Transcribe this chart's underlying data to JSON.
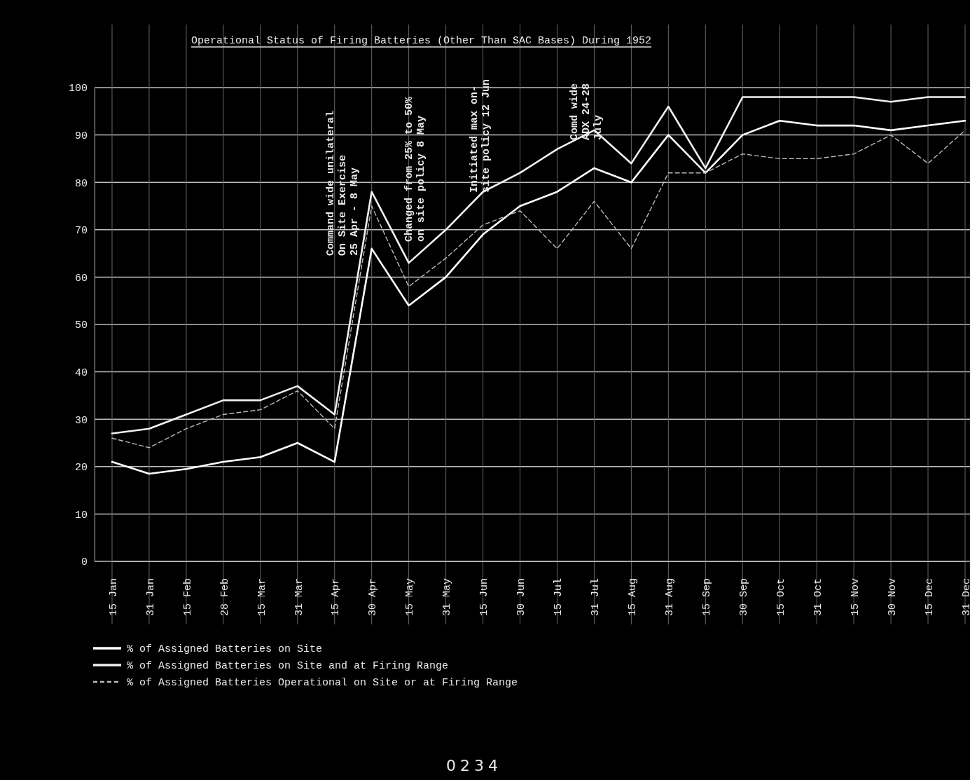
{
  "chart_data": {
    "type": "line",
    "title": "Operational Status of Firing Batteries (Other Than SAC Bases) During 1952",
    "categories": [
      "15 Jan",
      "31 Jan",
      "15 Feb",
      "28 Feb",
      "15 Mar",
      "31 Mar",
      "15 Apr",
      "30 Apr",
      "15 May",
      "31 May",
      "15 Jun",
      "30 Jun",
      "15 Jul",
      "31 Jul",
      "15 Aug",
      "31 Aug",
      "15 Sep",
      "30 Sep",
      "15 Oct",
      "31 Oct",
      "15 Nov",
      "30 Nov",
      "15 Dec",
      "31 Dec"
    ],
    "series": [
      {
        "name": "% of Assigned Batteries on Site",
        "color": "#ffffff",
        "line_style": "solid",
        "values": [
          21,
          18.5,
          19.5,
          21,
          22,
          25,
          21,
          66,
          54,
          60,
          69,
          75,
          78,
          83,
          80,
          90,
          82,
          90,
          93,
          92,
          92,
          91,
          92,
          93
        ]
      },
      {
        "name": "% of Assigned Batteries on Site and at Firing Range",
        "color": "#f0f0f0",
        "line_style": "solid",
        "values": [
          27,
          28,
          31,
          34,
          34,
          37,
          31,
          78,
          63,
          70,
          78,
          82,
          87,
          91,
          84,
          96,
          83,
          98,
          98,
          98,
          98,
          97,
          98,
          98
        ]
      },
      {
        "name": "% of Assigned Batteries Operational on Site or at Firing Range",
        "color": "#bbbbbb",
        "line_style": "dashed",
        "values": [
          26,
          24,
          28,
          31,
          32,
          36,
          28,
          75,
          58,
          64,
          71,
          74,
          66,
          76,
          66,
          82,
          82,
          86,
          85,
          85,
          86,
          90,
          84,
          91
        ]
      }
    ],
    "ylim": [
      0,
      100
    ],
    "yticks": [
      0,
      10,
      20,
      30,
      40,
      50,
      60,
      70,
      80,
      90,
      100
    ],
    "grid": true,
    "legend": "bottom left",
    "marker": "none",
    "annotations": [
      "Command wide unilateral\nOn Site Exercise\n25 Apr - 8 May",
      "Changed from 25% to 50%\non site policy 8 May",
      "Initiated max on-\nsite policy 12 Jun",
      "Comd wide\nADX 24-28\nJuly",
      "0234"
    ]
  }
}
